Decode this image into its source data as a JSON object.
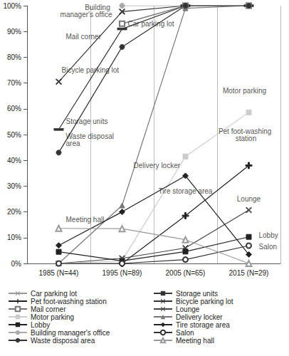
{
  "chart_data": {
    "type": "line",
    "categories": [
      "1985 (N=44)",
      "1995 (N=89)",
      "2005 (N=65)",
      "2015 (N=29)"
    ],
    "ylim": [
      0,
      100
    ],
    "yticks": [
      {
        "value": 0,
        "label": "0%"
      },
      {
        "value": 10,
        "label": "10%"
      },
      {
        "value": 20,
        "label": "20%"
      },
      {
        "value": 30,
        "label": "30%"
      },
      {
        "value": 40,
        "label": "40%"
      },
      {
        "value": 50,
        "label": "50%"
      },
      {
        "value": 60,
        "label": "60%"
      },
      {
        "value": 70,
        "label": "70%"
      },
      {
        "value": 80,
        "label": "80%"
      },
      {
        "value": 90,
        "label": "90%"
      },
      {
        "value": 100,
        "label": "100%"
      }
    ],
    "grid": true,
    "legend": "bottom",
    "series": [
      {
        "name": "Car parking lot",
        "color": "#9a9a9a",
        "marker": "x",
        "values": [
          null,
          93,
          100,
          100
        ]
      },
      {
        "name": "Storage units",
        "color": "#333333",
        "marker": "dash",
        "values": [
          52,
          91,
          100,
          100
        ]
      },
      {
        "name": "Pet foot-washing station",
        "color": "#222222",
        "marker": "plus",
        "values": [
          null,
          0,
          18.5,
          38
        ]
      },
      {
        "name": "Bicycle parking lot",
        "color": "#333333",
        "marker": "x",
        "values": [
          70.5,
          97.7,
          100,
          100
        ]
      },
      {
        "name": "Mail corner",
        "color": "#777777",
        "marker": "square_open",
        "values": [
          null,
          93,
          100,
          100
        ]
      },
      {
        "name": "Lounge",
        "color": "#444444",
        "marker": "x",
        "values": [
          0,
          2,
          6,
          20.7
        ]
      },
      {
        "name": "Motor parking",
        "color": "#cccccc",
        "marker": "square",
        "values": [
          0,
          1,
          41.5,
          58.6
        ]
      },
      {
        "name": "Delivery locker",
        "color": "#777777",
        "marker": "triangle",
        "values": [
          0,
          22.5,
          99,
          100
        ]
      },
      {
        "name": "Lobby",
        "color": "#222222",
        "marker": "square",
        "values": [
          4.5,
          1,
          4.6,
          10.3
        ]
      },
      {
        "name": "Tire storage area",
        "color": "#222222",
        "marker": "diamond",
        "values": [
          7,
          20,
          34,
          3.5
        ]
      },
      {
        "name": "Building manager's office",
        "color": "#aaaaaa",
        "marker": "circle",
        "values": [
          null,
          100,
          100,
          100
        ]
      },
      {
        "name": "Salon",
        "color": "#333333",
        "marker": "circle_open",
        "values": [
          0,
          0,
          1.5,
          6.9
        ]
      },
      {
        "name": "Waste disposal area",
        "color": "#333333",
        "marker": "circle",
        "values": [
          43,
          84,
          100,
          100
        ]
      },
      {
        "name": "Meeting hall",
        "color": "#999999",
        "marker": "triangle_open",
        "values": [
          13.6,
          13.5,
          9.2,
          0
        ]
      }
    ],
    "annotations": [
      {
        "text": "Building manager's office",
        "x": "1995 (N=89)",
        "y": 98
      },
      {
        "text": "Car parking lot",
        "x": "1995 (N=89)",
        "y": 93
      },
      {
        "text": "Mail corner",
        "x": "1985 (N=44)",
        "y": 88
      },
      {
        "text": "Bicycle parking lot",
        "x": "1985 (N=44)",
        "y": 75
      },
      {
        "text": "Storage units",
        "x": "1985 (N=44)",
        "y": 55
      },
      {
        "text": "Waste disposal area",
        "x": "1985 (N=44)",
        "y": 48
      },
      {
        "text": "Delivery locker",
        "x": "1995 (N=89)",
        "y": 38
      },
      {
        "text": "Motor parking",
        "x": "2015 (N=29)",
        "y": 67
      },
      {
        "text": "Pet foot-washing station",
        "x": "2015 (N=29)",
        "y": 50
      },
      {
        "text": "Tire storage area",
        "x": "2005 (N=65)",
        "y": 28
      },
      {
        "text": "Lounge",
        "x": "2015 (N=29)",
        "y": 25
      },
      {
        "text": "Lobby",
        "x": "2015 (N=29)",
        "y": 11
      },
      {
        "text": "Salon",
        "x": "2015 (N=29)",
        "y": 6.5
      },
      {
        "text": "Meeting hall",
        "x": "1985 (N=44)",
        "y": 17
      }
    ]
  }
}
